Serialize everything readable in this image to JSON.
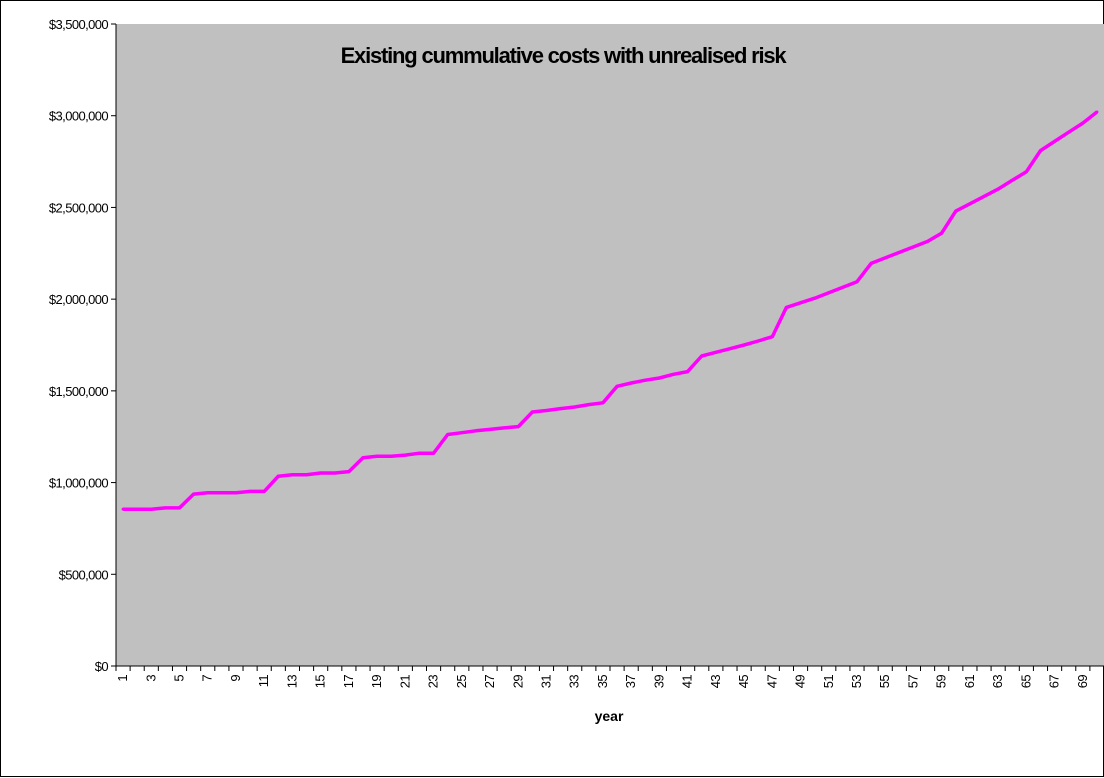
{
  "chart_data": {
    "type": "line",
    "title": "Existing cummulative costs with unrealised risk",
    "xlabel": "year",
    "ylabel": "",
    "ylim": [
      0,
      3500000
    ],
    "y_ticks": [
      "$0",
      "$500,000",
      "$1,000,000",
      "$1,500,000",
      "$2,000,000",
      "$2,500,000",
      "$3,000,000",
      "$3,500,000"
    ],
    "x_tick_labels": [
      "1",
      "3",
      "5",
      "7",
      "9",
      "11",
      "13",
      "15",
      "17",
      "19",
      "21",
      "23",
      "25",
      "27",
      "29",
      "31",
      "33",
      "35",
      "37",
      "39",
      "41",
      "43",
      "45",
      "47",
      "49",
      "51",
      "53",
      "55",
      "57",
      "59",
      "61",
      "63",
      "65",
      "67",
      "69"
    ],
    "grid": false,
    "legend": "none",
    "colors": {
      "plot_background": "#c0c0c0",
      "line": "#ff00ff"
    },
    "series": [
      {
        "x": [
          1,
          2,
          3,
          4,
          5,
          6,
          7,
          8,
          9,
          10,
          11,
          12,
          13,
          14,
          15,
          16,
          17,
          18,
          19,
          20,
          21,
          22,
          23,
          24,
          25,
          26,
          27,
          28,
          29,
          30,
          31,
          32,
          33,
          34,
          35,
          36,
          37,
          38,
          39,
          40,
          41,
          42,
          43,
          44,
          45,
          46,
          47,
          48,
          49,
          50,
          51,
          52,
          53,
          54,
          55,
          56,
          57,
          58,
          59,
          60,
          61,
          62,
          63,
          64,
          65,
          66,
          67,
          68,
          69,
          70
        ],
        "values": [
          855000,
          855000,
          855000,
          862000,
          862000,
          937000,
          945000,
          945000,
          945000,
          952000,
          952000,
          1035000,
          1043000,
          1043000,
          1052000,
          1052000,
          1060000,
          1135000,
          1143000,
          1143000,
          1150000,
          1160000,
          1160000,
          1262000,
          1272000,
          1282000,
          1290000,
          1298000,
          1305000,
          1385000,
          1393000,
          1403000,
          1412000,
          1425000,
          1435000,
          1525000,
          1543000,
          1558000,
          1570000,
          1590000,
          1605000,
          1690000,
          1710000,
          1730000,
          1750000,
          1772000,
          1795000,
          1955000,
          1980000,
          2005000,
          2035000,
          2065000,
          2095000,
          2195000,
          2225000,
          2255000,
          2285000,
          2315000,
          2360000,
          2480000,
          2520000,
          2560000,
          2600000,
          2648000,
          2695000,
          2810000,
          2860000,
          2910000,
          2960000,
          3020000
        ]
      }
    ]
  }
}
